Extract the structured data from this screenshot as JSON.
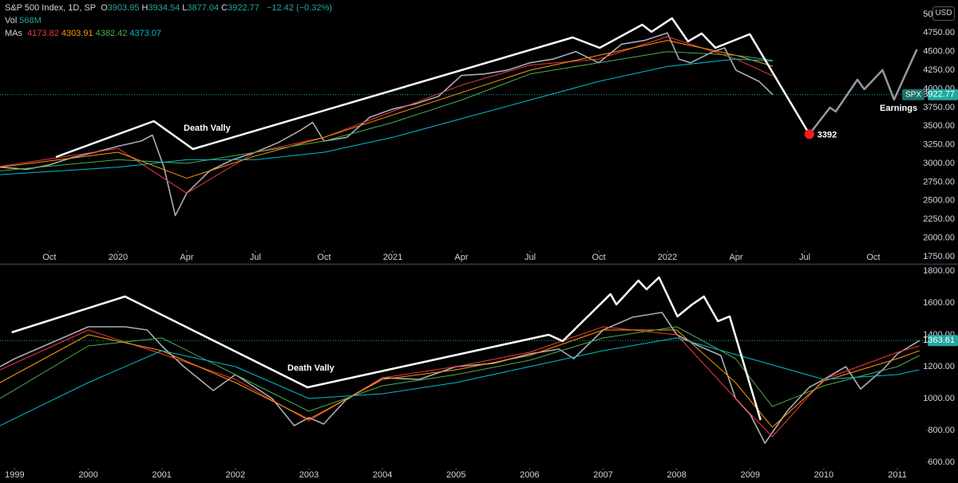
{
  "chart_data": [
    {
      "type": "line",
      "title": "S&P 500 Index, 1D, SP",
      "ohlc": [
        {
          "key": "O",
          "value": "3903.95"
        },
        {
          "key": "H",
          "value": "3934.54"
        },
        {
          "key": "L",
          "value": "3877.04"
        },
        {
          "key": "C",
          "value": "3922.77"
        }
      ],
      "change": "−12.42 (−0.32%)",
      "volume": {
        "key": "Vol",
        "value": "568M"
      },
      "mas": {
        "key": "MAs",
        "values": [
          "4173.82",
          "4303.91",
          "4382.42",
          "4373.07"
        ]
      },
      "currency": "USD",
      "price_tag": {
        "symbol": "SPX",
        "value": 3922.77,
        "color": "#22a7a0"
      },
      "xlim": [
        -2.16,
        38.3
      ],
      "xticks": [
        {
          "value": 0,
          "label": "Oct"
        },
        {
          "value": 3,
          "label": "2020"
        },
        {
          "value": 6,
          "label": "Apr"
        },
        {
          "value": 9,
          "label": "Jul"
        },
        {
          "value": 12,
          "label": "Oct"
        },
        {
          "value": 15,
          "label": "2021"
        },
        {
          "value": 18,
          "label": "Apr"
        },
        {
          "value": 21,
          "label": "Jul"
        },
        {
          "value": 24,
          "label": "Oct"
        },
        {
          "value": 27,
          "label": "2022"
        },
        {
          "value": 30,
          "label": "Apr"
        },
        {
          "value": 33,
          "label": "Jul"
        },
        {
          "value": 36,
          "label": "Oct"
        }
      ],
      "ylim": [
        1664,
        5192
      ],
      "yticks": [
        {
          "value": 1750,
          "label": "1750.00"
        },
        {
          "value": 2000,
          "label": "2000.00"
        },
        {
          "value": 2250,
          "label": "2250.00"
        },
        {
          "value": 2500,
          "label": "2500.00"
        },
        {
          "value": 2750,
          "label": "2750.00"
        },
        {
          "value": 3000,
          "label": "3000.00"
        },
        {
          "value": 3250,
          "label": "3250.00"
        },
        {
          "value": 3500,
          "label": "3500.00"
        },
        {
          "value": 3750,
          "label": "3750.00"
        },
        {
          "value": 4000,
          "label": "4000.00"
        },
        {
          "value": 4250,
          "label": "4250.00"
        },
        {
          "value": 4500,
          "label": "4500.00"
        },
        {
          "value": 4750,
          "label": "4750.00"
        },
        {
          "value": 5000,
          "label": "5000.00"
        }
      ],
      "series": [
        {
          "color": "#a9adb5",
          "x": [
            -2.16,
            -1,
            0,
            1,
            2,
            3,
            4,
            4.5,
            5,
            5.5,
            6,
            7,
            8,
            9,
            10,
            11,
            11.5,
            12,
            13,
            14,
            15,
            16,
            17,
            18,
            19,
            20,
            21,
            22,
            23,
            24,
            25,
            26,
            27,
            27.5,
            28,
            29,
            29.5,
            30,
            31,
            31.6
          ],
          "values": [
            2950,
            2920,
            2980,
            3080,
            3150,
            3230,
            3300,
            3380,
            2950,
            2300,
            2600,
            2900,
            3050,
            3150,
            3280,
            3450,
            3550,
            3300,
            3350,
            3620,
            3730,
            3800,
            3900,
            4180,
            4200,
            4250,
            4350,
            4400,
            4500,
            4350,
            4600,
            4650,
            4750,
            4400,
            4350,
            4500,
            4550,
            4250,
            4100,
            3922.77
          ]
        },
        {
          "color": "#f23645",
          "x": [
            -2.16,
            3,
            6,
            9,
            12,
            15,
            18,
            21,
            24,
            27,
            30,
            31.6
          ],
          "values": [
            2960,
            3200,
            2600,
            3150,
            3350,
            3700,
            4050,
            4320,
            4400,
            4700,
            4400,
            4174
          ]
        },
        {
          "color": "#ff9800",
          "x": [
            -2.16,
            3,
            6,
            9,
            12,
            15,
            18,
            21,
            24,
            27,
            30,
            31.6
          ],
          "values": [
            2950,
            3150,
            2800,
            3100,
            3350,
            3650,
            3950,
            4250,
            4450,
            4650,
            4450,
            4304
          ]
        },
        {
          "color": "#4caf50",
          "x": [
            -2.16,
            3,
            6,
            9,
            12,
            15,
            18,
            21,
            24,
            27,
            30,
            31.6
          ],
          "values": [
            2900,
            3050,
            3000,
            3150,
            3300,
            3550,
            3850,
            4200,
            4350,
            4500,
            4450,
            4382
          ]
        },
        {
          "color": "#00bcd4",
          "x": [
            -2.16,
            3,
            6,
            9,
            12,
            15,
            18,
            21,
            24,
            27,
            30,
            31.6
          ],
          "values": [
            2850,
            2950,
            3050,
            3050,
            3150,
            3350,
            3600,
            3850,
            4100,
            4300,
            4400,
            4373
          ]
        }
      ],
      "drawings": [
        {
          "color": "#ffffff",
          "x": [
            0.28,
            4.56,
            6.27,
            22.86,
            24.04,
            25.9,
            26.3,
            27.2,
            27.9,
            28.5,
            29.1,
            30.6,
            33.2
          ],
          "values": [
            3086,
            3567,
            3193,
            4690,
            4551,
            4861,
            4765,
            4947,
            4637,
            4743,
            4551,
            4733,
            3392
          ]
        },
        {
          "color": "#9598a1",
          "x": [
            33.2,
            34.1,
            34.35,
            35.3,
            35.6,
            36.4,
            36.9,
            37.9
          ],
          "values": [
            3392,
            3749,
            3696,
            4123,
            3995,
            4252,
            3856,
            4530
          ]
        }
      ],
      "marker": {
        "x": 33.2,
        "value": 3392,
        "color": "#ff1a1a"
      },
      "annotations": [
        "Death Vally",
        "Earnings"
      ]
    },
    {
      "type": "line",
      "price_tag": {
        "value": 1363.61,
        "color": "#22a7a0"
      },
      "xlim": [
        1998.8,
        2011.39
      ],
      "xticks": [
        1999,
        2000,
        2001,
        2002,
        2003,
        2004,
        2005,
        2006,
        2007,
        2008,
        2009,
        2010,
        2011
      ],
      "ylim": [
        550,
        1835
      ],
      "yticks": [
        {
          "value": 600,
          "label": "600.00"
        },
        {
          "value": 800,
          "label": "800.00"
        },
        {
          "value": 1000,
          "label": "1000.00"
        },
        {
          "value": 1200,
          "label": "1200.00"
        },
        {
          "value": 1400,
          "label": "1400.00"
        },
        {
          "value": 1600,
          "label": "1600.00"
        },
        {
          "value": 1800,
          "label": "1800.00"
        }
      ],
      "series": [
        {
          "color": "#a9adb5",
          "x": [
            1998.8,
            1999,
            1999.5,
            2000,
            2000.5,
            2000.8,
            2001,
            2001.3,
            2001.7,
            2002,
            2002.5,
            2002.8,
            2003,
            2003.2,
            2003.5,
            2004,
            2004.5,
            2005,
            2005.5,
            2006,
            2006.4,
            2006.6,
            2007,
            2007.4,
            2007.8,
            2008,
            2008.3,
            2008.6,
            2008.8,
            2009,
            2009.2,
            2009.5,
            2009.8,
            2010,
            2010.3,
            2010.5,
            2010.8,
            2011,
            2011.3
          ],
          "values": [
            1200,
            1250,
            1350,
            1450,
            1450,
            1430,
            1330,
            1200,
            1050,
            1150,
            1000,
            830,
            880,
            840,
            990,
            1130,
            1120,
            1200,
            1220,
            1280,
            1310,
            1250,
            1430,
            1510,
            1540,
            1400,
            1330,
            1270,
            1000,
            900,
            720,
            920,
            1070,
            1120,
            1200,
            1060,
            1180,
            1280,
            1363.61
          ]
        },
        {
          "color": "#f23645",
          "x": [
            1998.8,
            2000,
            2001,
            2002,
            2003,
            2004,
            2005,
            2006,
            2007,
            2008,
            2008.8,
            2009.3,
            2010,
            2011,
            2011.3
          ],
          "values": [
            1180,
            1430,
            1280,
            1120,
            860,
            1130,
            1200,
            1290,
            1450,
            1400,
            1000,
            760,
            1120,
            1290,
            1330
          ]
        },
        {
          "color": "#ff9800",
          "x": [
            1998.8,
            2000,
            2001,
            2002,
            2003,
            2004,
            2005,
            2006,
            2007,
            2008,
            2008.8,
            2009.3,
            2010,
            2011,
            2011.3
          ],
          "values": [
            1100,
            1400,
            1300,
            1100,
            870,
            1120,
            1180,
            1270,
            1430,
            1430,
            1100,
            820,
            1110,
            1250,
            1300
          ]
        },
        {
          "color": "#4caf50",
          "x": [
            1998.8,
            2000,
            2001,
            2002,
            2003,
            2004,
            2005,
            2006,
            2007,
            2008,
            2008.8,
            2009.3,
            2010,
            2011,
            2011.3
          ],
          "values": [
            1000,
            1330,
            1380,
            1150,
            920,
            1080,
            1150,
            1240,
            1380,
            1450,
            1250,
            950,
            1080,
            1200,
            1270
          ]
        },
        {
          "color": "#00bcd4",
          "x": [
            1998.8,
            2000,
            2001,
            2002,
            2003,
            2004,
            2005,
            2006,
            2007,
            2008,
            2009,
            2010,
            2011,
            2011.3
          ],
          "values": [
            830,
            1100,
            1300,
            1200,
            1000,
            1030,
            1100,
            1200,
            1300,
            1380,
            1250,
            1120,
            1150,
            1180
          ]
        }
      ],
      "drawings": [
        {
          "color": "#ffffff",
          "x": [
            1998.96,
            2000.5,
            2002.98,
            2006.26,
            2006.45,
            2007.1,
            2007.18,
            2007.48,
            2007.59,
            2007.76,
            2008.01,
            2008.21,
            2008.37,
            2008.56,
            2008.72,
            2009.14
          ],
          "values": [
            1415,
            1640,
            1070,
            1400,
            1360,
            1655,
            1590,
            1740,
            1685,
            1760,
            1515,
            1590,
            1640,
            1485,
            1515,
            865
          ]
        }
      ],
      "annotations": [
        "Death Vally"
      ]
    }
  ]
}
